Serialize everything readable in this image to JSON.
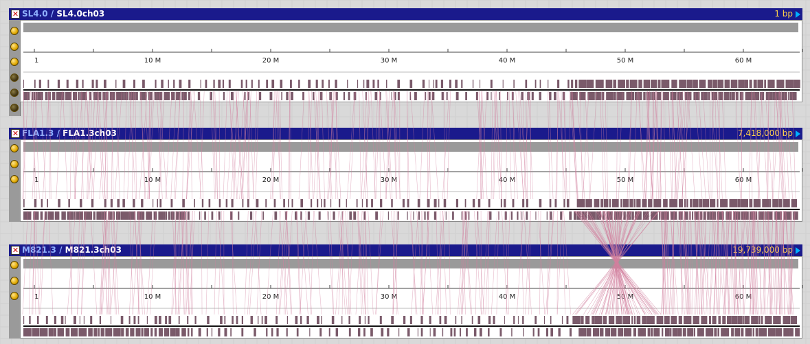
{
  "colors": {
    "title_bg": "#1a1a8c",
    "assembly_text": "#8fb0ff",
    "chrom_text": "#ffffff",
    "bp_text": "#ffd24a",
    "feature": "#7a5a6a",
    "synteny": "#d2809f"
  },
  "tracks": [
    {
      "assembly": "SL4.0",
      "separator": "/",
      "chromosome": "SL4.0ch03",
      "bp_label": "1 bp",
      "ticks": [
        "1",
        "10 M",
        "20 M",
        "30 M",
        "40 M",
        "50 M",
        "60 M"
      ]
    },
    {
      "assembly": "FLA1.3",
      "separator": "/",
      "chromosome": "FLA1.3ch03",
      "bp_label": "7,418,000 bp",
      "ticks": [
        "1",
        "10 M",
        "20 M",
        "30 M",
        "40 M",
        "50 M",
        "60 M"
      ]
    },
    {
      "assembly": "M821.3",
      "separator": "/",
      "chromosome": "M821.3ch03",
      "bp_label": "19,739,000 bp",
      "ticks": [
        "1",
        "10 M",
        "20 M",
        "30 M",
        "40 M",
        "50 M",
        "60 M"
      ]
    }
  ],
  "icons": {
    "close": "close-icon",
    "arrow": "arrow-right-icon",
    "sidebar_dot": "handle-dot-icon"
  }
}
